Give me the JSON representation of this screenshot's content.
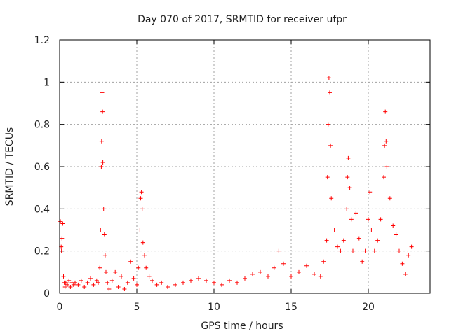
{
  "chart_data": {
    "type": "scatter",
    "title": "Day 070 of 2017, SRMTID for receiver ufpr",
    "xlabel": "GPS time / hours",
    "ylabel": "SRMTID / TECUs",
    "xlim": [
      0,
      24
    ],
    "ylim": [
      0,
      1.2
    ],
    "x_ticks": [
      0,
      5,
      10,
      15,
      20
    ],
    "x_tick_labels": [
      "0",
      "5",
      "10",
      "15",
      "20"
    ],
    "y_ticks": [
      0,
      0.2,
      0.4,
      0.6,
      0.8,
      1.0,
      1.2
    ],
    "y_tick_labels": [
      "0",
      "0.2",
      "0.4",
      "0.6",
      "0.8",
      "1",
      "1.2"
    ],
    "grid": true,
    "marker": "+",
    "color": "#ff0000",
    "series": [
      {
        "name": "SRMTID",
        "x": [
          0.0,
          0.05,
          0.1,
          0.12,
          0.15,
          0.2,
          0.25,
          0.3,
          0.35,
          0.4,
          0.5,
          0.6,
          0.7,
          0.8,
          0.9,
          1.0,
          1.2,
          1.4,
          1.6,
          1.8,
          2.0,
          2.2,
          2.4,
          2.5,
          2.6,
          2.65,
          2.7,
          2.72,
          2.75,
          2.78,
          2.8,
          2.85,
          2.9,
          2.95,
          3.0,
          3.1,
          3.2,
          3.4,
          3.6,
          3.8,
          4.0,
          4.2,
          4.4,
          4.6,
          4.8,
          5.0,
          5.1,
          5.2,
          5.25,
          5.3,
          5.35,
          5.4,
          5.5,
          5.6,
          5.8,
          6.0,
          6.3,
          6.6,
          7.0,
          7.5,
          8.0,
          8.5,
          9.0,
          9.5,
          10.0,
          10.5,
          11.0,
          11.5,
          12.0,
          12.5,
          13.0,
          13.5,
          13.9,
          14.2,
          14.5,
          15.0,
          15.5,
          16.0,
          16.5,
          16.9,
          17.1,
          17.3,
          17.35,
          17.4,
          17.45,
          17.5,
          17.55,
          17.6,
          17.8,
          18.0,
          18.2,
          18.4,
          18.6,
          18.65,
          18.7,
          18.8,
          18.9,
          19.0,
          19.2,
          19.4,
          19.6,
          19.8,
          20.0,
          20.1,
          20.2,
          20.4,
          20.6,
          20.8,
          21.0,
          21.05,
          21.1,
          21.15,
          21.2,
          21.4,
          21.6,
          21.8,
          22.0,
          22.2,
          22.4,
          22.6,
          22.8
        ],
        "values": [
          0.3,
          0.34,
          0.22,
          0.2,
          0.26,
          0.33,
          0.08,
          0.05,
          0.03,
          0.05,
          0.04,
          0.06,
          0.03,
          0.05,
          0.04,
          0.05,
          0.04,
          0.06,
          0.03,
          0.05,
          0.07,
          0.04,
          0.06,
          0.05,
          0.12,
          0.3,
          0.6,
          0.72,
          0.95,
          0.86,
          0.62,
          0.4,
          0.28,
          0.18,
          0.1,
          0.05,
          0.02,
          0.06,
          0.1,
          0.03,
          0.08,
          0.02,
          0.05,
          0.15,
          0.07,
          0.04,
          0.12,
          0.3,
          0.45,
          0.48,
          0.4,
          0.24,
          0.18,
          0.12,
          0.08,
          0.06,
          0.04,
          0.05,
          0.03,
          0.04,
          0.05,
          0.06,
          0.07,
          0.06,
          0.05,
          0.04,
          0.06,
          0.05,
          0.07,
          0.09,
          0.1,
          0.08,
          0.12,
          0.2,
          0.14,
          0.08,
          0.1,
          0.13,
          0.09,
          0.08,
          0.15,
          0.25,
          0.55,
          0.8,
          1.02,
          0.95,
          0.7,
          0.45,
          0.3,
          0.22,
          0.2,
          0.25,
          0.4,
          0.55,
          0.64,
          0.5,
          0.35,
          0.2,
          0.38,
          0.26,
          0.15,
          0.2,
          0.35,
          0.48,
          0.3,
          0.2,
          0.25,
          0.35,
          0.55,
          0.7,
          0.86,
          0.72,
          0.6,
          0.45,
          0.32,
          0.28,
          0.2,
          0.14,
          0.09,
          0.18,
          0.22
        ]
      }
    ]
  }
}
